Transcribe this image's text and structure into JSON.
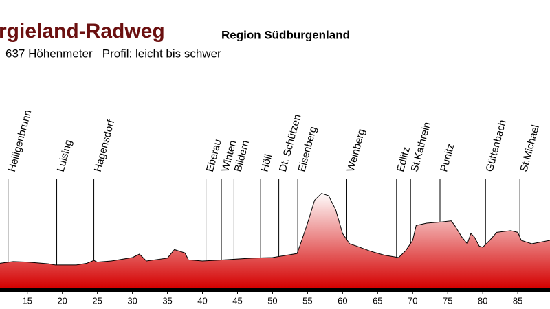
{
  "chart_data": {
    "type": "area",
    "title": "rgieland-Radweg",
    "subtitle": "Region Südburgenland",
    "annotation": "637 Höhenmeter   Profil: leicht bis schwer",
    "x": [
      11.1,
      13,
      15,
      18,
      19,
      22,
      23.5,
      24.5,
      25,
      27,
      30,
      31,
      32,
      35,
      36,
      37.5,
      38,
      40,
      43,
      47,
      50,
      52,
      53.5,
      54,
      55,
      56,
      57,
      58,
      59,
      60,
      61,
      62,
      64,
      66,
      68,
      69,
      70,
      70.5,
      72,
      74,
      75.5,
      76,
      77,
      77.8,
      78.3,
      78.8,
      79.5,
      80,
      81,
      82,
      84,
      85,
      85.5,
      87,
      89.6
    ],
    "values": [
      194,
      197,
      196,
      193,
      191,
      191,
      194,
      199,
      196,
      198,
      204,
      210,
      198,
      203,
      218,
      212,
      200,
      198,
      200,
      203,
      204,
      208,
      211,
      228,
      264,
      304,
      316,
      312,
      288,
      246,
      228,
      224,
      215,
      208,
      204,
      216,
      234,
      260,
      264,
      266,
      268,
      260,
      240,
      228,
      246,
      240,
      224,
      222,
      234,
      248,
      251,
      248,
      234,
      228,
      234
    ],
    "color": "#d40000",
    "xlim": [
      11.1,
      89.6
    ],
    "ylim": [
      150,
      528
    ],
    "xticks": [
      15,
      20,
      25,
      30,
      35,
      40,
      45,
      50,
      55,
      60,
      65,
      70,
      75,
      80,
      85
    ],
    "places": [
      {
        "name": "Heiligenbrunn",
        "km": 12.25
      },
      {
        "name": "Luising",
        "km": 19.2
      },
      {
        "name": "Hagensdorf",
        "km": 24.5
      },
      {
        "name": "Eberau",
        "km": 40.5
      },
      {
        "name": "Winten",
        "km": 42.7
      },
      {
        "name": "Bildern",
        "km": 44.5
      },
      {
        "name": "Höll",
        "km": 48.3
      },
      {
        "name": "Dt. Schützen",
        "km": 50.9
      },
      {
        "name": "Eisenberg",
        "km": 53.6
      },
      {
        "name": "Weinberg",
        "km": 60.6
      },
      {
        "name": "Edlitz",
        "km": 67.7
      },
      {
        "name": "St.Kathrein",
        "km": 69.7
      },
      {
        "name": "Punitz",
        "km": 73.9
      },
      {
        "name": "Güttenbach",
        "km": 80.4
      },
      {
        "name": "St.Michael",
        "km": 85.3
      }
    ]
  }
}
